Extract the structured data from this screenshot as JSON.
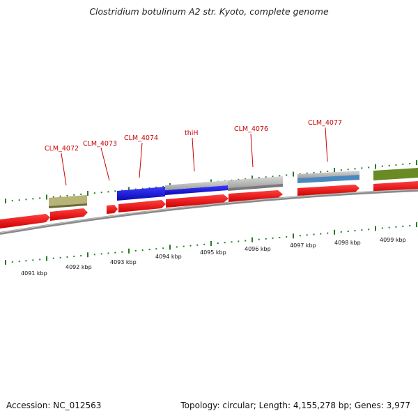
{
  "title": "Clostridium botulinum A2 str. Kyoto, complete genome",
  "footer": {
    "accession": "Accession: NC_012563",
    "summary": "Topology: circular; Length: 4,155,278 bp; Genes: 3,977"
  },
  "colors": {
    "cds": "#ee1111",
    "backbone": "#8a8a8a",
    "tick": "#2a7a2a",
    "label": "#cc0000",
    "feature_blue": "#1a1adc",
    "feature_grey": "#b4b4b4",
    "feature_olive": "#b8b478",
    "feature_green": "#6a8a24",
    "feature_steel": "#4a88c0"
  },
  "scale_labels": [
    "4091 kbp",
    "4092 kbp",
    "4093 kbp",
    "4094 kbp",
    "4095 kbp",
    "4096 kbp",
    "4097 kbp",
    "4098 kbp",
    "4099 kbp"
  ],
  "gene_labels": [
    "CLM_4072",
    "CLM_4073",
    "CLM_4074",
    "thiH",
    "CLM_4076",
    "CLM_4077"
  ]
}
